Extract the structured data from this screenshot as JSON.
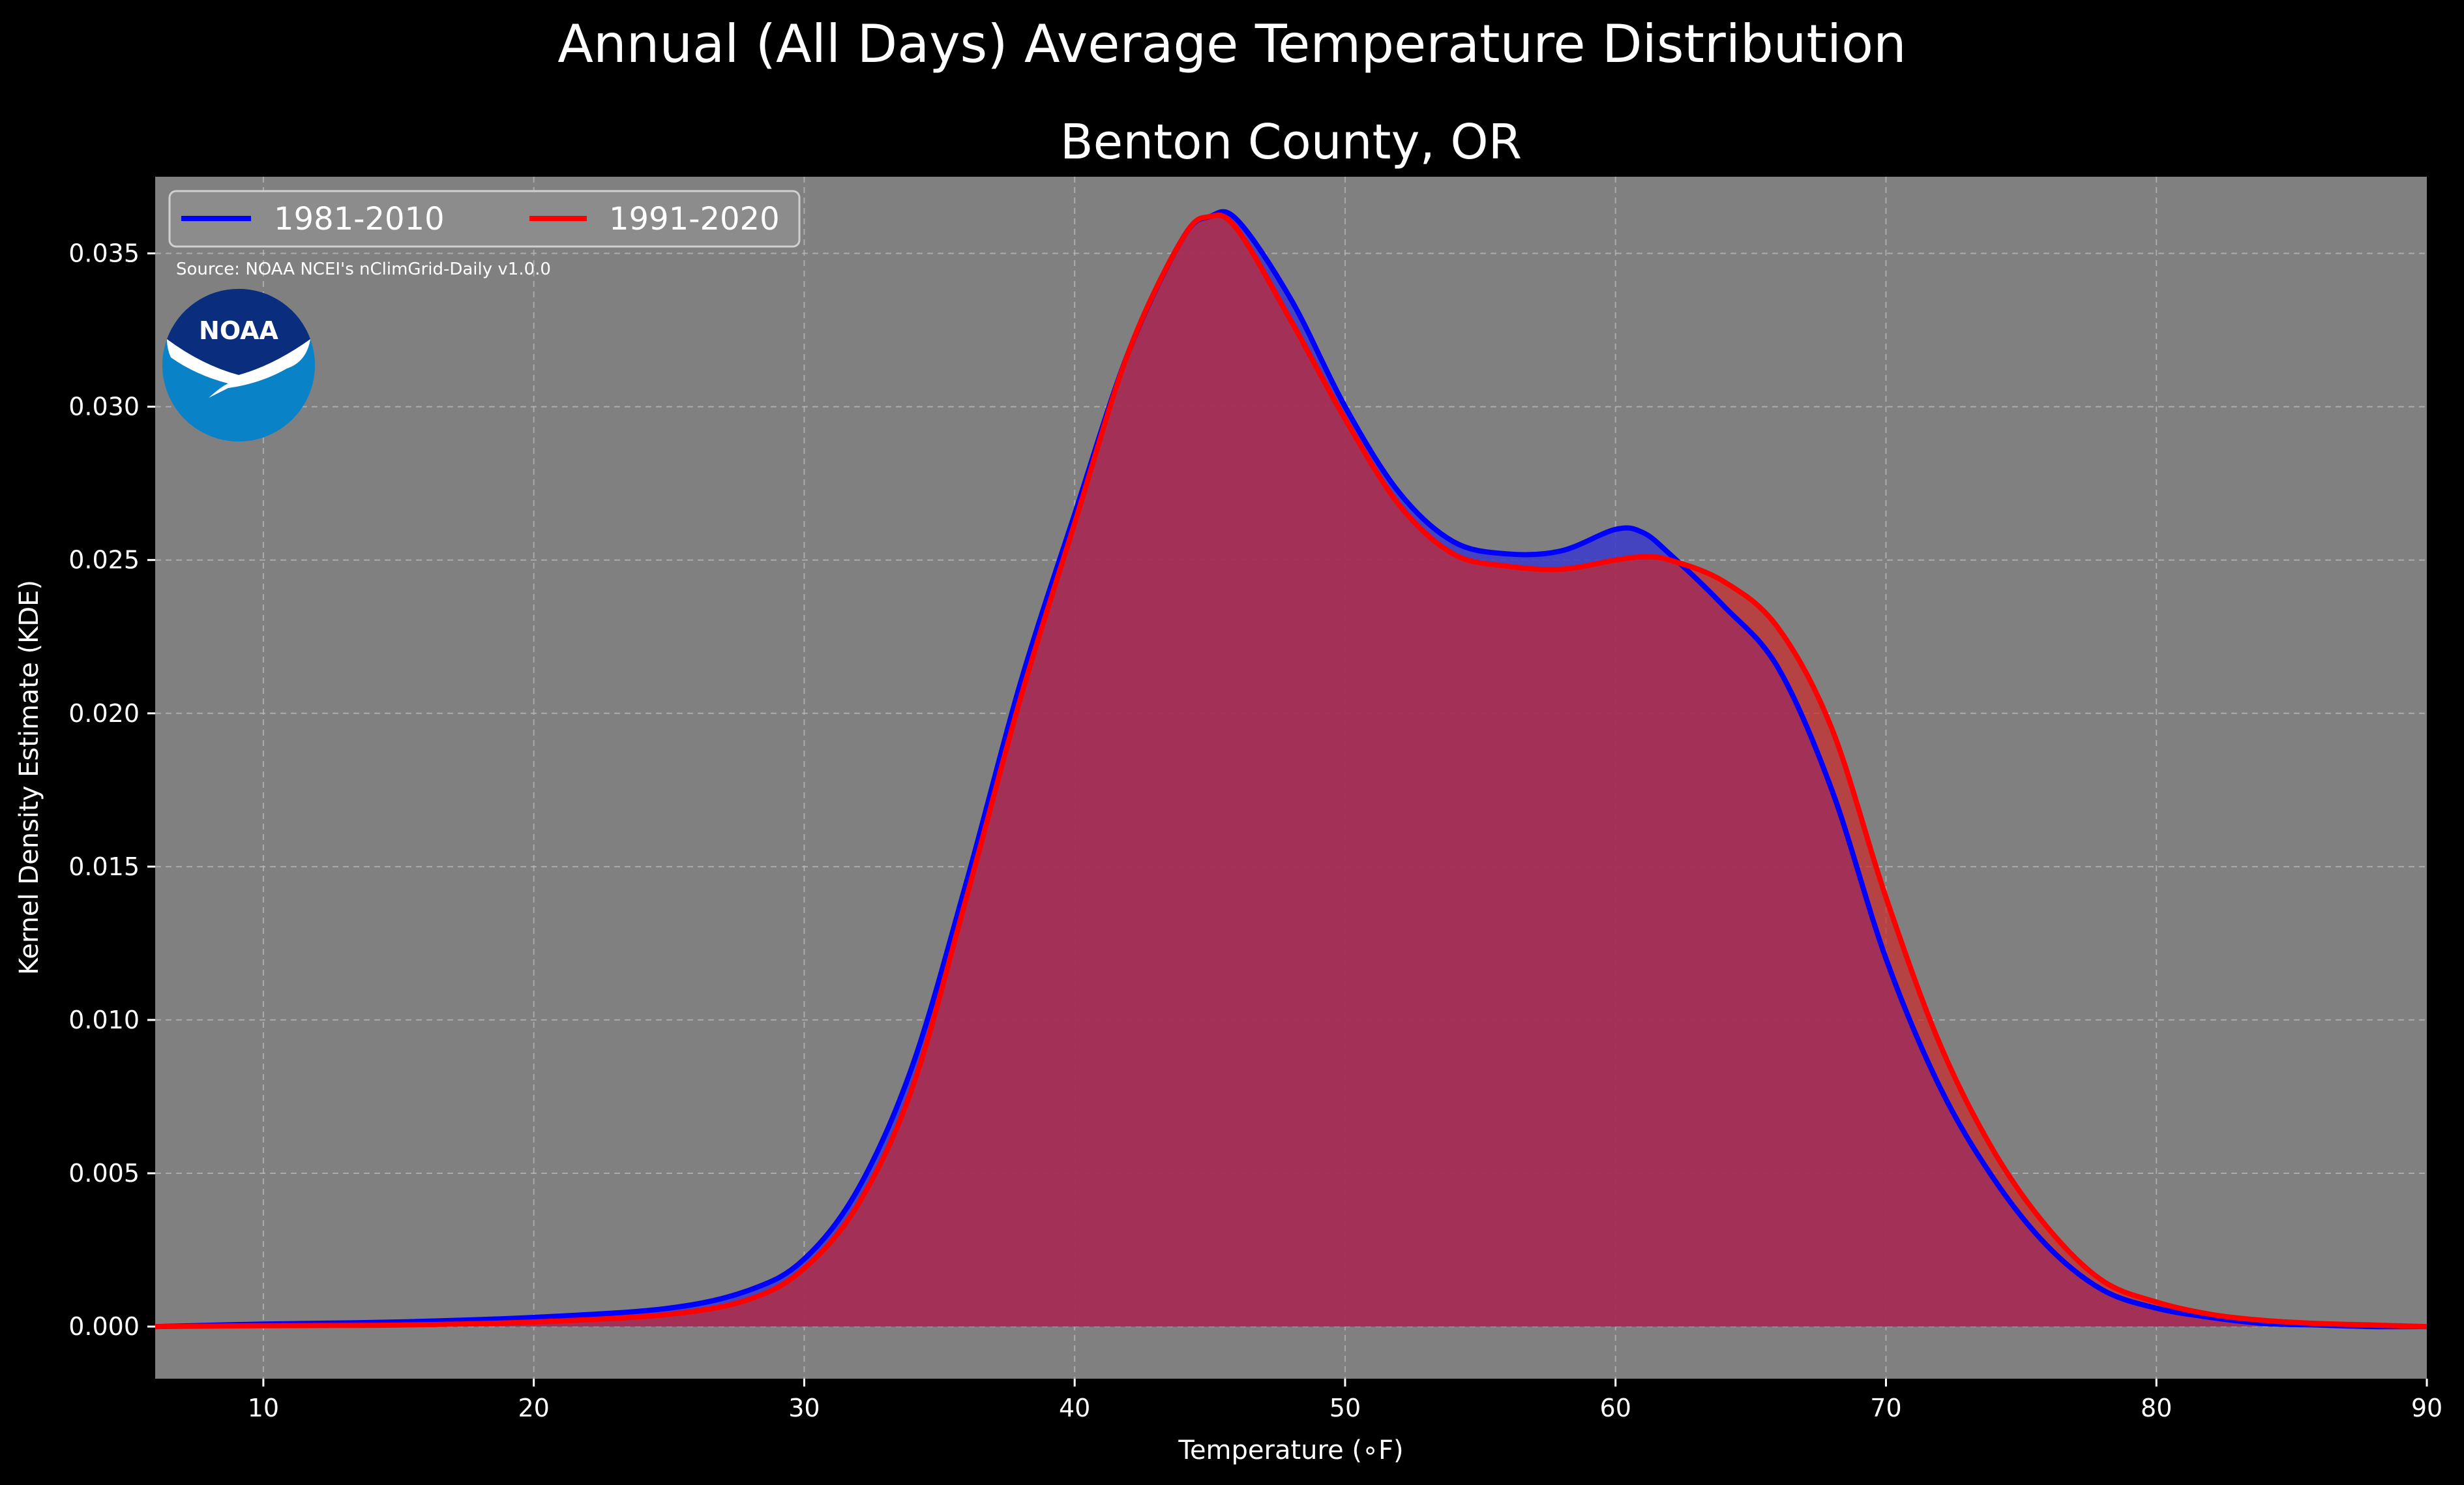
{
  "title": "Annual (All Days) Average Temperature Distribution",
  "chart_data": {
    "type": "area",
    "title": "Benton County, OR",
    "xlabel": "Temperature (∘F)",
    "ylabel": "Kernel Density Estimate (KDE)",
    "xlim": [
      6,
      90
    ],
    "ylim": [
      -0.0017,
      0.0375
    ],
    "xticks": [
      10,
      20,
      30,
      40,
      50,
      60,
      70,
      80,
      90
    ],
    "yticks": [
      "0.000",
      "0.005",
      "0.010",
      "0.015",
      "0.020",
      "0.025",
      "0.030",
      "0.035"
    ],
    "grid": true,
    "legend": {
      "placement": "top-left",
      "ncol": 2
    },
    "source": "Source: NOAA NCEI's nClimGrid-Daily v1.0.0",
    "logo_text": "NOAA",
    "x": [
      6,
      10,
      15,
      20,
      25,
      28,
      30,
      32,
      34,
      36,
      38,
      40,
      42,
      44,
      45,
      46,
      48,
      50,
      52,
      54,
      56,
      58,
      60,
      61,
      62,
      64,
      66,
      68,
      70,
      72,
      74,
      76,
      78,
      80,
      82,
      84,
      86,
      88,
      90
    ],
    "series": [
      {
        "name": "1981-2010",
        "color": "#0000ff",
        "fill": "#3a3acc",
        "values": [
          0.0,
          8e-05,
          0.00015,
          0.0003,
          0.0006,
          0.0012,
          0.0022,
          0.0045,
          0.0085,
          0.0145,
          0.021,
          0.0265,
          0.0318,
          0.0355,
          0.0362,
          0.0361,
          0.0335,
          0.03,
          0.0272,
          0.0256,
          0.0252,
          0.0253,
          0.026,
          0.0259,
          0.0252,
          0.0235,
          0.0215,
          0.0175,
          0.012,
          0.0078,
          0.0048,
          0.0026,
          0.0012,
          0.0006,
          0.0003,
          0.0001,
          5e-05,
          0.0,
          0.0
        ]
      },
      {
        "name": "1991-2020",
        "color": "#ff0000",
        "fill": "#cc2a2a",
        "values": [
          0.0,
          3e-05,
          5e-05,
          0.00015,
          0.0004,
          0.0009,
          0.0019,
          0.004,
          0.0078,
          0.014,
          0.0205,
          0.0262,
          0.0318,
          0.0355,
          0.0362,
          0.0358,
          0.0328,
          0.0296,
          0.0268,
          0.0252,
          0.0248,
          0.0247,
          0.025,
          0.0251,
          0.025,
          0.0243,
          0.0228,
          0.0195,
          0.014,
          0.0092,
          0.0057,
          0.0032,
          0.0015,
          0.0008,
          0.0004,
          0.0002,
          0.0001,
          5e-05,
          0.0
        ]
      }
    ]
  }
}
